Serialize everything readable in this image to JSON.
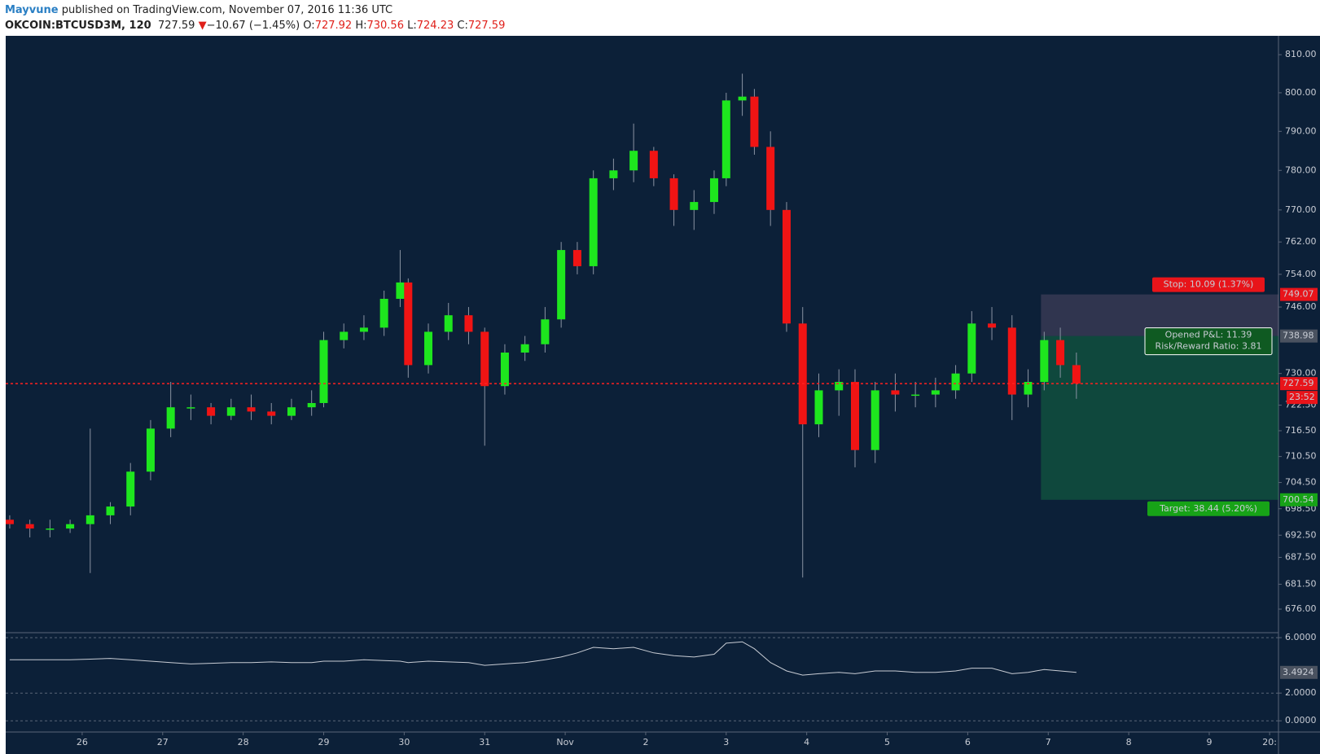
{
  "header": {
    "author": "Mayvune",
    "published": "published on TradingView.com, November 07, 2016 11:36 UTC",
    "symbol": "OKCOIN:BTCUSD3M, 120",
    "last": "727.59",
    "change": "−10.67 (−1.45%)",
    "ohlc": [
      {
        "label": "O:",
        "value": "727.92"
      },
      {
        "label": "H:",
        "value": "730.56"
      },
      {
        "label": "L:",
        "value": "724.23"
      },
      {
        "label": "C:",
        "value": "727.59"
      }
    ]
  },
  "chart_data": [
    {
      "type": "candlestick",
      "log": true,
      "grid": false,
      "up_color": "#1ee61e",
      "down_color": "#f01414",
      "xlim": [
        0.05,
        15.86
      ],
      "ylim": [
        671,
        815
      ],
      "xticks": [
        {
          "value": 1,
          "label": "26"
        },
        {
          "value": 2,
          "label": "27"
        },
        {
          "value": 3,
          "label": "28"
        },
        {
          "value": 4,
          "label": "29"
        },
        {
          "value": 5,
          "label": "30"
        },
        {
          "value": 6,
          "label": "31"
        },
        {
          "value": 7,
          "label": "Nov"
        },
        {
          "value": 8,
          "label": "2"
        },
        {
          "value": 9,
          "label": "3"
        },
        {
          "value": 10,
          "label": "4"
        },
        {
          "value": 11,
          "label": "5"
        },
        {
          "value": 12,
          "label": "6"
        },
        {
          "value": 13,
          "label": "7"
        },
        {
          "value": 14,
          "label": "8"
        },
        {
          "value": 15,
          "label": "9"
        },
        {
          "value": 15.75,
          "label": "20:"
        }
      ],
      "yticks": [
        {
          "value": 810,
          "label": "810.00"
        },
        {
          "value": 800,
          "label": "800.00"
        },
        {
          "value": 790,
          "label": "790.00"
        },
        {
          "value": 780,
          "label": "780.00"
        },
        {
          "value": 770,
          "label": "770.00"
        },
        {
          "value": 762,
          "label": "762.00"
        },
        {
          "value": 754,
          "label": "754.00"
        },
        {
          "value": 746,
          "label": "746.00"
        },
        {
          "value": 730,
          "label": "730.00"
        },
        {
          "value": 722.5,
          "label": "722.50"
        },
        {
          "value": 716.5,
          "label": "716.50"
        },
        {
          "value": 710.5,
          "label": "710.50"
        },
        {
          "value": 704.5,
          "label": "704.50"
        },
        {
          "value": 698.5,
          "label": "698.50"
        },
        {
          "value": 692.5,
          "label": "692.50"
        },
        {
          "value": 687.5,
          "label": "687.50"
        },
        {
          "value": 681.5,
          "label": "681.50"
        },
        {
          "value": 676,
          "label": "676.00"
        }
      ],
      "x": [
        0.1,
        0.35,
        0.6,
        0.85,
        1.1,
        1.35,
        1.6,
        1.85,
        2.1,
        2.35,
        2.6,
        2.85,
        3.1,
        3.35,
        3.6,
        3.85,
        4.0,
        4.25,
        4.5,
        4.75,
        4.95,
        5.05,
        5.3,
        5.55,
        5.8,
        6.0,
        6.25,
        6.5,
        6.75,
        6.95,
        7.15,
        7.35,
        7.6,
        7.85,
        8.1,
        8.35,
        8.6,
        8.85,
        9.0,
        9.2,
        9.35,
        9.55,
        9.75,
        9.95,
        10.15,
        10.4,
        10.6,
        10.85,
        11.1,
        11.35,
        11.6,
        11.85,
        12.05,
        12.3,
        12.55,
        12.75,
        12.95,
        13.15,
        13.35
      ],
      "open": [
        696,
        695,
        694,
        694,
        695,
        697,
        699,
        707,
        717,
        722,
        722,
        720,
        722,
        721,
        720,
        722,
        723,
        738,
        740,
        741,
        748,
        752,
        732,
        740,
        744,
        740,
        727,
        735,
        737,
        743,
        760,
        756,
        778,
        780,
        785,
        778,
        770,
        772,
        778,
        798,
        799,
        786,
        770,
        742,
        718,
        726,
        728,
        712,
        726,
        725,
        725,
        726,
        730,
        742,
        741,
        725,
        728,
        738,
        732
      ],
      "high": [
        697,
        696,
        696,
        696,
        717,
        700,
        709,
        719,
        728,
        725,
        723,
        724,
        725,
        723,
        724,
        726,
        740,
        742,
        744,
        750,
        760,
        753,
        742,
        747,
        746,
        741,
        737,
        739,
        746,
        762,
        762,
        780,
        783,
        792,
        786,
        779,
        775,
        780,
        800,
        805,
        801,
        790,
        772,
        746,
        730,
        731,
        731,
        728,
        730,
        728,
        729,
        732,
        745,
        746,
        744,
        731,
        740,
        741,
        735
      ],
      "low": [
        694,
        692,
        692,
        693,
        684,
        695,
        697,
        705,
        715,
        719,
        718,
        719,
        719,
        718,
        719,
        720,
        722,
        736,
        738,
        739,
        746,
        729,
        730,
        738,
        737,
        713,
        725,
        733,
        735,
        741,
        754,
        754,
        775,
        777,
        776,
        766,
        765,
        769,
        776,
        794,
        784,
        766,
        740,
        683,
        715,
        720,
        708,
        709,
        721,
        722,
        722,
        724,
        728,
        738,
        719,
        722,
        726,
        729,
        724
      ],
      "close": [
        695,
        694,
        694,
        695,
        697,
        699,
        707,
        717,
        722,
        722,
        720,
        722,
        721,
        720,
        722,
        723,
        738,
        740,
        741,
        748,
        752,
        732,
        740,
        744,
        740,
        727,
        735,
        737,
        743,
        760,
        756,
        778,
        780,
        785,
        778,
        770,
        772,
        778,
        798,
        799,
        786,
        770,
        742,
        718,
        726,
        728,
        712,
        726,
        725,
        725,
        726,
        730,
        742,
        741,
        725,
        728,
        738,
        732,
        727.59
      ],
      "countdown": "23:52",
      "position": {
        "stop": 749.07,
        "entry": 738.98,
        "target": 700.54,
        "x_start": 12.91,
        "stop_label": "Stop: 10.09 (1.37%)",
        "pnl_label": "Opened P&L: 11.39",
        "rr_label": "Risk/Reward Ratio: 3.81",
        "target_label": "Target: 38.44 (5.20%)"
      }
    },
    {
      "type": "line",
      "color": "#c8ccd4",
      "xlim": [
        0.05,
        15.86
      ],
      "ylim": [
        -0.75,
        6.3
      ],
      "yticks": [
        {
          "value": 6,
          "label": "6.0000"
        },
        {
          "value": 2,
          "label": "2.0000"
        },
        {
          "value": 0,
          "label": "0.0000"
        }
      ],
      "x": [
        0.1,
        0.35,
        0.6,
        0.85,
        1.1,
        1.35,
        1.6,
        1.85,
        2.1,
        2.35,
        2.6,
        2.85,
        3.1,
        3.35,
        3.6,
        3.85,
        4.0,
        4.25,
        4.5,
        4.75,
        4.95,
        5.05,
        5.3,
        5.55,
        5.8,
        6.0,
        6.25,
        6.5,
        6.75,
        6.95,
        7.15,
        7.35,
        7.6,
        7.85,
        8.1,
        8.35,
        8.6,
        8.85,
        9.0,
        9.2,
        9.35,
        9.55,
        9.75,
        9.95,
        10.15,
        10.4,
        10.6,
        10.85,
        11.1,
        11.35,
        11.6,
        11.85,
        12.05,
        12.3,
        12.55,
        12.75,
        12.95,
        13.15,
        13.35
      ],
      "values": [
        4.4,
        4.4,
        4.4,
        4.4,
        4.45,
        4.5,
        4.4,
        4.3,
        4.2,
        4.1,
        4.15,
        4.2,
        4.2,
        4.25,
        4.2,
        4.2,
        4.3,
        4.3,
        4.4,
        4.35,
        4.3,
        4.2,
        4.3,
        4.25,
        4.2,
        4.0,
        4.1,
        4.2,
        4.4,
        4.6,
        4.9,
        5.3,
        5.2,
        5.3,
        4.9,
        4.7,
        4.6,
        4.8,
        5.6,
        5.7,
        5.2,
        4.2,
        3.6,
        3.3,
        3.4,
        3.5,
        3.4,
        3.6,
        3.6,
        3.5,
        3.5,
        3.6,
        3.8,
        3.8,
        3.4,
        3.5,
        3.7,
        3.6,
        3.4924
      ]
    }
  ]
}
